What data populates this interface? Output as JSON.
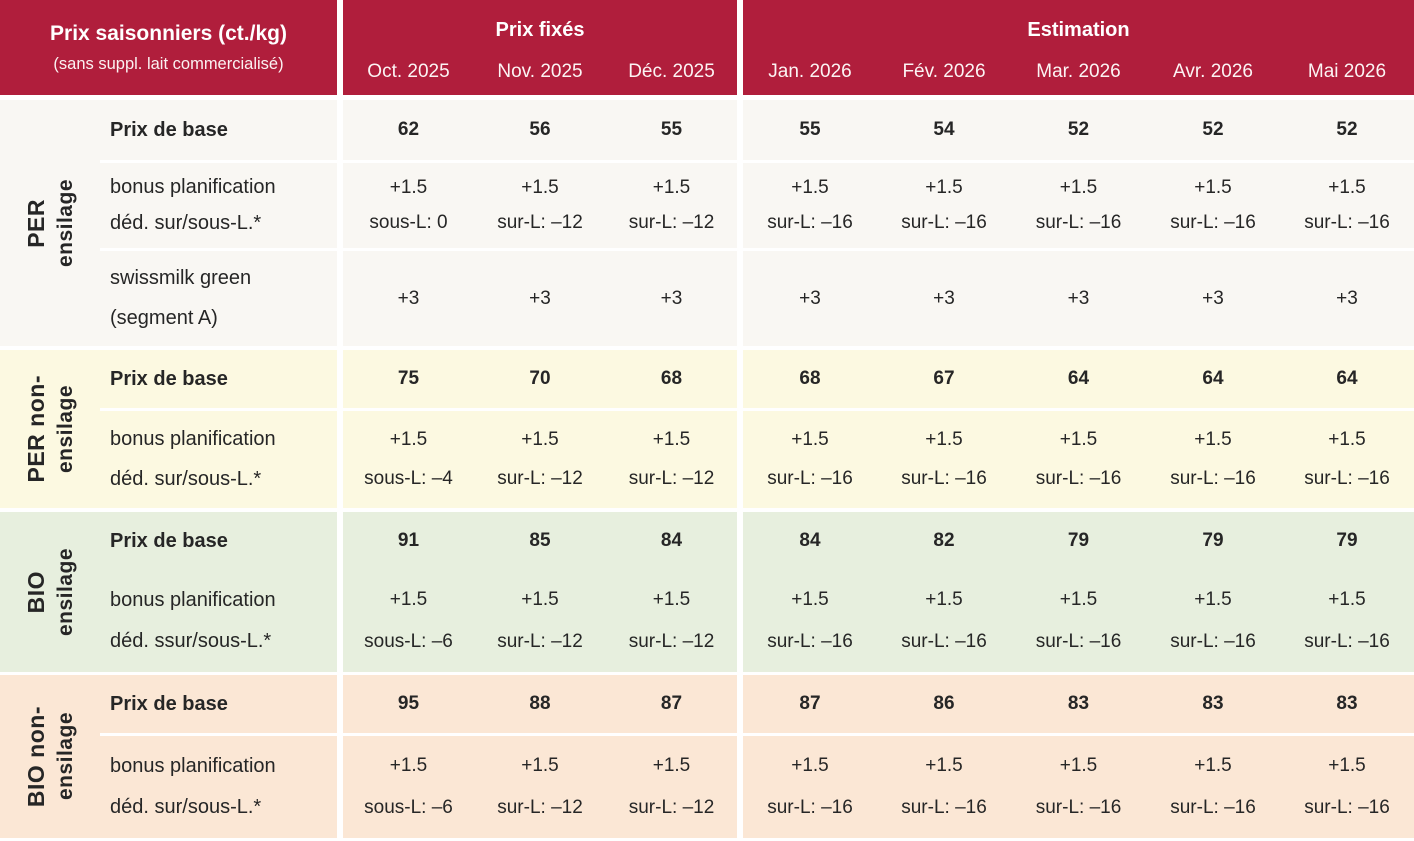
{
  "table": {
    "title": "Prix saisonniers (ct./kg)",
    "subtitle": "(sans suppl. lait commercialisé)",
    "col_groups": {
      "fixed": "Prix fixés",
      "estimation": "Estimation"
    },
    "months": [
      "Oct. 2025",
      "Nov. 2025",
      "Déc. 2025",
      "Jan. 2026",
      "Fév. 2026",
      "Mar. 2026",
      "Avr. 2026",
      "Mai 2026"
    ],
    "colors": {
      "header_bg": "#b01e3c",
      "header_text": "#ffffff",
      "per_ensilage_bg": "#f9f7f3",
      "per_non_ensilage_bg": "#fcf9e1",
      "bio_ensilage_bg": "#e7efde",
      "bio_non_ensilage_bg": "#fbe7d5",
      "text": "#262626"
    },
    "sections": [
      {
        "group_line1": "PER",
        "group_line2": "ensilage",
        "rows": [
          {
            "label": "Prix de base",
            "values": [
              "62",
              "56",
              "55",
              "55",
              "54",
              "52",
              "52",
              "52"
            ]
          },
          {
            "label_top": "bonus planification",
            "label_bottom": "déd. sur/sous-L.*",
            "values_top": [
              "+1.5",
              "+1.5",
              "+1.5",
              "+1.5",
              "+1.5",
              "+1.5",
              "+1.5",
              "+1.5"
            ],
            "values_bottom": [
              "sous-L: 0",
              "sur-L: –12",
              "sur-L: –12",
              "sur-L: –16",
              "sur-L: –16",
              "sur-L: –16",
              "sur-L: –16",
              "sur-L: –16"
            ]
          },
          {
            "label_top": "swissmilk green",
            "label_bottom": "(segment A)",
            "values": [
              "+3",
              "+3",
              "+3",
              "+3",
              "+3",
              "+3",
              "+3",
              "+3"
            ]
          }
        ]
      },
      {
        "group_line1": "PER non-",
        "group_line2": "ensilage",
        "rows": [
          {
            "label": "Prix de base",
            "values": [
              "75",
              "70",
              "68",
              "68",
              "67",
              "64",
              "64",
              "64"
            ]
          },
          {
            "label_top": "bonus planification",
            "label_bottom": "déd. sur/sous-L.*",
            "values_top": [
              "+1.5",
              "+1.5",
              "+1.5",
              "+1.5",
              "+1.5",
              "+1.5",
              "+1.5",
              "+1.5"
            ],
            "values_bottom": [
              "sous-L: –4",
              "sur-L: –12",
              "sur-L: –12",
              "sur-L: –16",
              "sur-L: –16",
              "sur-L: –16",
              "sur-L: –16",
              "sur-L: –16"
            ]
          }
        ]
      },
      {
        "group_line1": "BIO",
        "group_line2": "ensilage",
        "rows": [
          {
            "label": "Prix de base",
            "values": [
              "91",
              "85",
              "84",
              "84",
              "82",
              "79",
              "79",
              "79"
            ]
          },
          {
            "label_top": "bonus planification",
            "label_bottom": "déd. ssur/sous-L.*",
            "values_top": [
              "+1.5",
              "+1.5",
              "+1.5",
              "+1.5",
              "+1.5",
              "+1.5",
              "+1.5",
              "+1.5"
            ],
            "values_bottom": [
              "sous-L: –6",
              "sur-L: –12",
              "sur-L: –12",
              "sur-L: –16",
              "sur-L: –16",
              "sur-L: –16",
              "sur-L: –16",
              "sur-L: –16"
            ]
          }
        ]
      },
      {
        "group_line1": "BIO non-",
        "group_line2": "ensilage",
        "rows": [
          {
            "label": "Prix de base",
            "values": [
              "95",
              "88",
              "87",
              "87",
              "86",
              "83",
              "83",
              "83"
            ]
          },
          {
            "label_top": "bonus planification",
            "label_bottom": "déd. sur/sous-L.*",
            "values_top": [
              "+1.5",
              "+1.5",
              "+1.5",
              "+1.5",
              "+1.5",
              "+1.5",
              "+1.5",
              "+1.5"
            ],
            "values_bottom": [
              "sous-L: –6",
              "sur-L: –12",
              "sur-L: –12",
              "sur-L: –16",
              "sur-L: –16",
              "sur-L: –16",
              "sur-L: –16",
              "sur-L: –16"
            ]
          }
        ]
      }
    ]
  }
}
